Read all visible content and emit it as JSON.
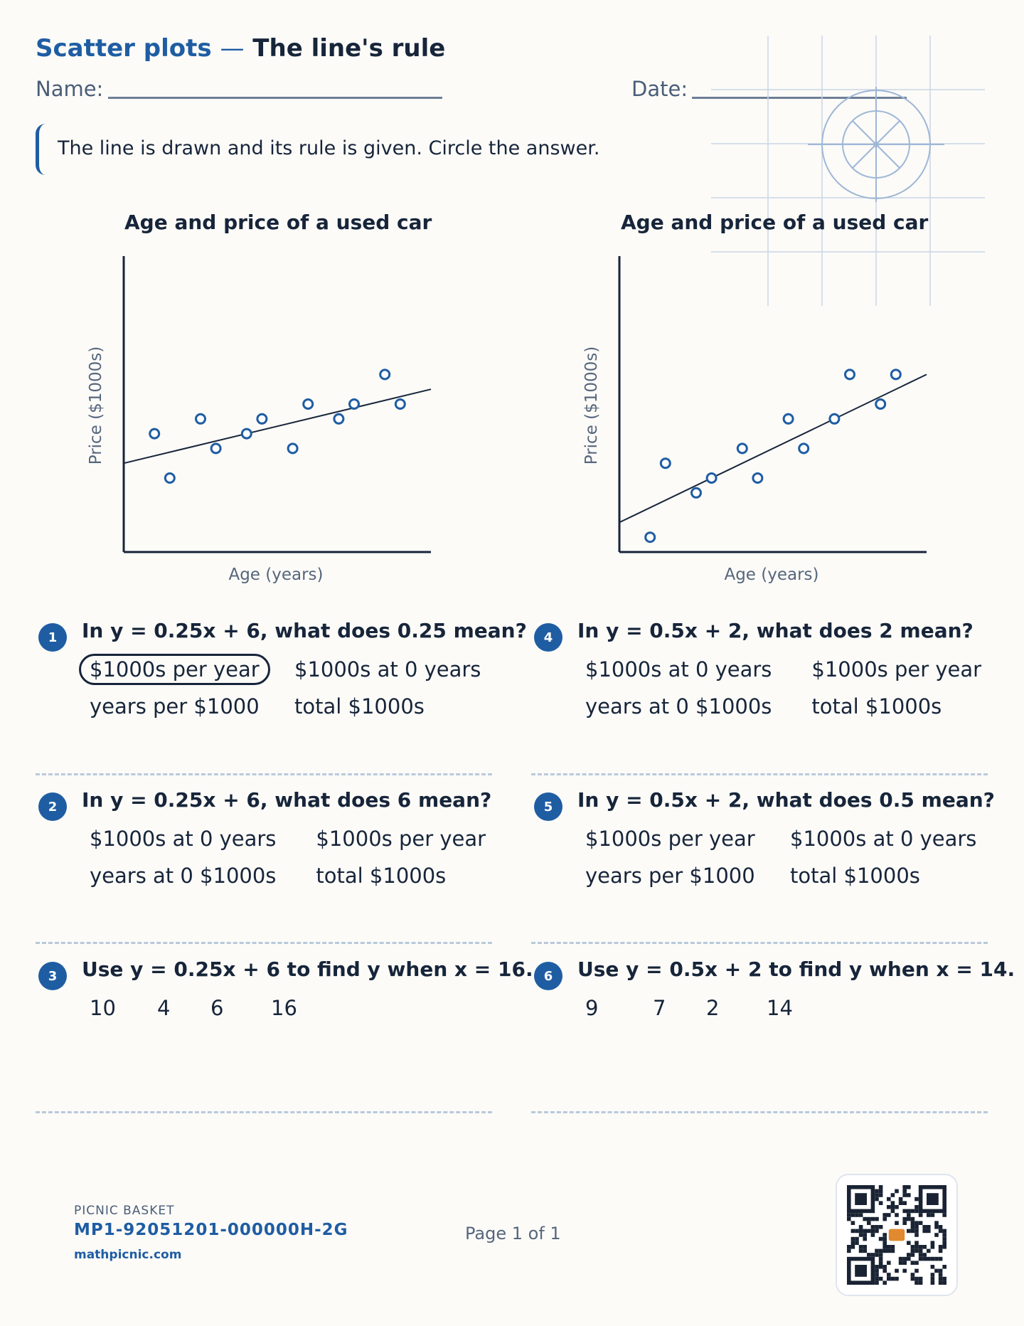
{
  "header": {
    "title_part1": "Scatter plots",
    "title_dash": "—",
    "title_part2": "The line's rule",
    "name_label": "Name:",
    "date_label": "Date:"
  },
  "instructions": "The line is drawn and its rule is given. Circle the answer.",
  "chart_data": [
    {
      "type": "scatter",
      "title": "Age and price of a used car",
      "xlabel": "Age (years)",
      "ylabel": "Price ($1000s)",
      "xlim": [
        0,
        20
      ],
      "ylim": [
        0,
        20
      ],
      "points": [
        [
          2,
          8
        ],
        [
          3,
          5
        ],
        [
          5,
          9
        ],
        [
          6,
          7
        ],
        [
          8,
          8
        ],
        [
          9,
          9
        ],
        [
          11,
          7
        ],
        [
          12,
          10
        ],
        [
          14,
          9
        ],
        [
          15,
          10
        ],
        [
          17,
          12
        ],
        [
          18,
          10
        ]
      ],
      "line": {
        "slope": 0.25,
        "intercept": 6
      }
    },
    {
      "type": "scatter",
      "title": "Age and price of a used car",
      "xlabel": "Age (years)",
      "ylabel": "Price ($1000s)",
      "xlim": [
        0,
        20
      ],
      "ylim": [
        0,
        20
      ],
      "points": [
        [
          2,
          1
        ],
        [
          3,
          6
        ],
        [
          5,
          4
        ],
        [
          6,
          5
        ],
        [
          8,
          7
        ],
        [
          9,
          5
        ],
        [
          11,
          9
        ],
        [
          12,
          7
        ],
        [
          14,
          9
        ],
        [
          15,
          12
        ],
        [
          17,
          10
        ],
        [
          18,
          12
        ]
      ],
      "line": {
        "slope": 0.5,
        "intercept": 2
      }
    }
  ],
  "questions": [
    {
      "number": "1",
      "text": "In y = 0.25x + 6, what does 0.25 mean?",
      "choices": [
        "$1000s per year",
        "$1000s at 0 years",
        "years per $1000",
        "total $1000s"
      ],
      "circled": 0
    },
    {
      "number": "2",
      "text": "In y = 0.25x + 6, what does 6 mean?",
      "choices": [
        "$1000s at 0 years",
        "$1000s per year",
        "years at 0 $1000s",
        "total $1000s"
      ],
      "circled": -1
    },
    {
      "number": "3",
      "text": "Use y = 0.25x + 6 to find y when x = 16.",
      "choices": [
        "10",
        "4",
        "6",
        "16"
      ],
      "circled": -1
    },
    {
      "number": "4",
      "text": "In y = 0.5x + 2, what does 2 mean?",
      "choices": [
        "$1000s at 0 years",
        "$1000s per year",
        "years at 0 $1000s",
        "total $1000s"
      ],
      "circled": -1
    },
    {
      "number": "5",
      "text": "In y = 0.5x + 2, what does 0.5 mean?",
      "choices": [
        "$1000s per year",
        "$1000s at 0 years",
        "years per $1000",
        "total $1000s"
      ],
      "circled": -1
    },
    {
      "number": "6",
      "text": "Use y = 0.5x + 2 to find y when x = 14.",
      "choices": [
        "9",
        "7",
        "2",
        "14"
      ],
      "circled": -1
    }
  ],
  "footer": {
    "brand": "PICNIC BASKET",
    "code": "MP1-92051201-000000H-2G",
    "site": "mathpicnic.com",
    "page": "Page 1 of 1"
  },
  "colors": {
    "accent": "#1f5da3",
    "ink": "#17253a",
    "muted": "#56667c",
    "dash": "#b9c9dc"
  }
}
